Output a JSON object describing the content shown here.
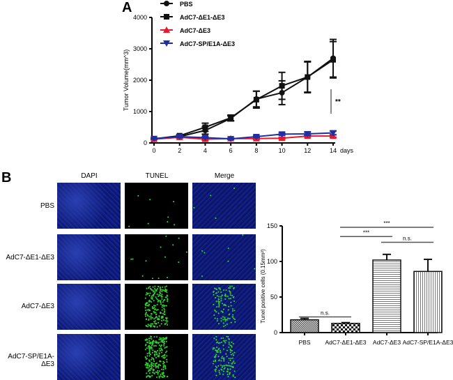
{
  "panel_a_label": "A",
  "panel_b_label": "B",
  "chart_data": [
    {
      "type": "line",
      "ylabel": "Tumor Volume(mm^3)",
      "xlabel": "days",
      "x": [
        0,
        2,
        4,
        6,
        8,
        10,
        12,
        14
      ],
      "xlim": [
        0,
        14
      ],
      "ylim": [
        0,
        4000
      ],
      "yticks": [
        0,
        1000,
        2000,
        3000,
        4000
      ],
      "xticks": [
        0,
        2,
        4,
        6,
        8,
        10,
        12,
        14
      ],
      "legend": "top-left",
      "annotation": "**",
      "series": [
        {
          "name": "PBS",
          "color": "#111111",
          "marker": "circle",
          "values": [
            130,
            200,
            400,
            780,
            1400,
            1600,
            2100,
            2700
          ],
          "err": [
            30,
            40,
            120,
            80,
            250,
            380,
            480,
            600
          ]
        },
        {
          "name": "AdC7-ΔE1-ΔE3",
          "color": "#111111",
          "marker": "square",
          "values": [
            130,
            230,
            500,
            800,
            1380,
            1820,
            2100,
            2650
          ],
          "err": [
            30,
            40,
            130,
            90,
            270,
            430,
            500,
            580
          ]
        },
        {
          "name": "AdC7-ΔE3",
          "color": "#e8192c",
          "marker": "triangle-up",
          "values": [
            120,
            180,
            120,
            140,
            140,
            150,
            220,
            220
          ],
          "err": [
            20,
            30,
            30,
            20,
            30,
            30,
            30,
            40
          ]
        },
        {
          "name": "AdC7-SP/E1A-ΔE3",
          "color": "#1f2fa0",
          "marker": "triangle-down",
          "values": [
            140,
            200,
            170,
            130,
            200,
            280,
            290,
            320
          ],
          "err": [
            20,
            30,
            30,
            20,
            30,
            40,
            50,
            60
          ]
        }
      ]
    },
    {
      "type": "bar",
      "ylabel": "Tunel positive cells (0.15mm²)",
      "ylim": [
        0,
        150
      ],
      "yticks": [
        0,
        50,
        100,
        150
      ],
      "categories": [
        "PBS",
        "AdC7-ΔE1-ΔE3",
        "AdC7-ΔE3",
        "AdC7-SP/E1A-ΔE3"
      ],
      "values": [
        18,
        13,
        102,
        86
      ],
      "err": [
        2,
        1,
        8,
        17
      ],
      "patterns": [
        "fine-check",
        "check",
        "horizontal-lines",
        "vertical-lines"
      ],
      "significance": [
        {
          "from": 0,
          "to": 1,
          "label": "n.s.",
          "level": 22
        },
        {
          "from": 1,
          "to": 2,
          "label": "***",
          "level": 135
        },
        {
          "from": 2,
          "to": 3,
          "label": "n.s.",
          "level": 127
        },
        {
          "from": 1,
          "to": 3,
          "label": "***",
          "level": 148
        }
      ]
    }
  ],
  "micro": {
    "columns": [
      "DAPI",
      "TUNEL",
      "Merge"
    ],
    "rows": [
      "PBS",
      "AdC7-ΔE1-ΔE3",
      "AdC7-ΔE3",
      "AdC7-SP/E1A-ΔE3"
    ],
    "tunel_density": [
      8,
      14,
      220,
      260
    ]
  }
}
